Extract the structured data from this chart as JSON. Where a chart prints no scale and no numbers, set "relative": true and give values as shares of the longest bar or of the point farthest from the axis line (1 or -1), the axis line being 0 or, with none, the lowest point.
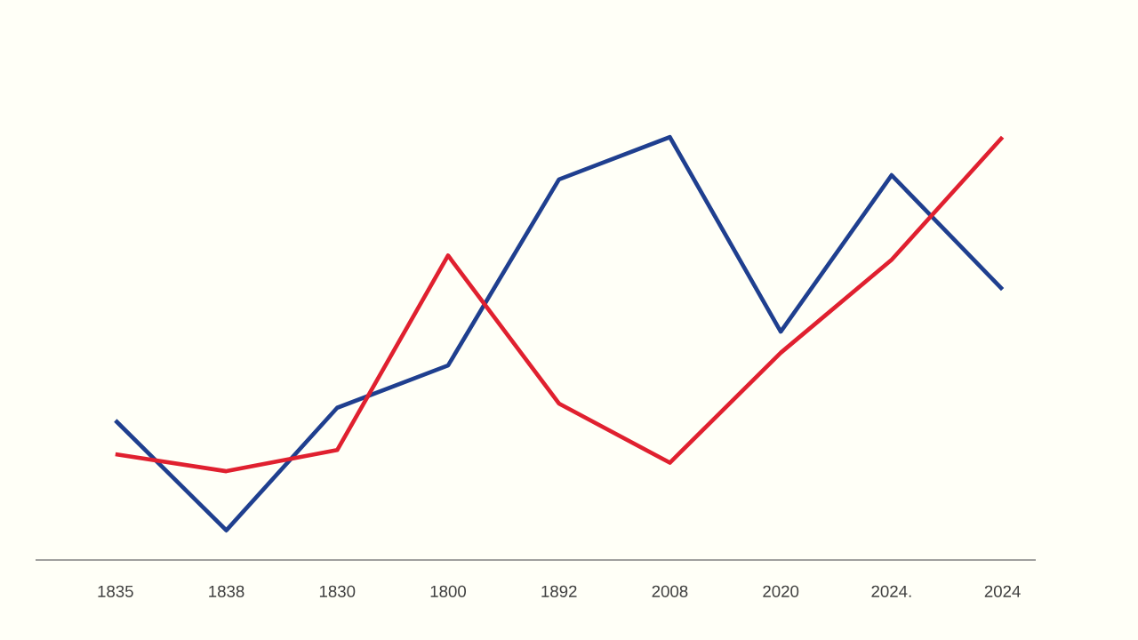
{
  "chart_data": {
    "type": "line",
    "relative": true,
    "categories": [
      "1835",
      "1838",
      "1830",
      "1800",
      "1892",
      "2008",
      "2020",
      "2024.",
      "2024"
    ],
    "series": [
      {
        "color": "#1f3f8f",
        "values": [
          0.33,
          0.07,
          0.36,
          0.46,
          0.9,
          1,
          0.54,
          0.91,
          0.64
        ]
      },
      {
        "color": "#e0202f",
        "values": [
          0.25,
          0.21,
          0.26,
          0.72,
          0.37,
          0.23,
          0.49,
          0.71,
          1
        ]
      }
    ]
  }
}
